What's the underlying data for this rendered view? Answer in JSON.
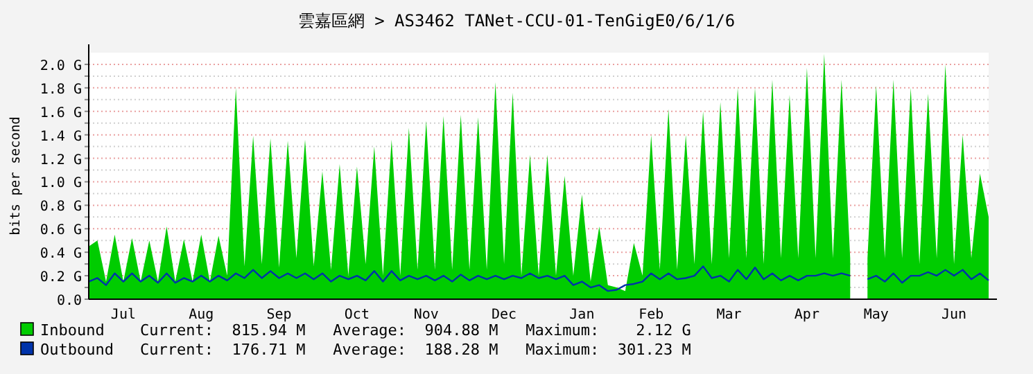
{
  "chart_data": {
    "type": "area",
    "title": "雲嘉區網 > AS3462 TANet-CCU-01-TenGigE0/6/1/6",
    "ylabel": "bits per second",
    "categories": [
      null,
      null,
      null,
      null,
      "Jul",
      null,
      null,
      null,
      null,
      null,
      null,
      null,
      null,
      "Aug",
      null,
      null,
      null,
      null,
      null,
      null,
      null,
      null,
      "Sep",
      null,
      null,
      null,
      null,
      null,
      null,
      null,
      null,
      "Oct",
      null,
      null,
      null,
      null,
      null,
      null,
      null,
      "Nov",
      null,
      null,
      null,
      null,
      null,
      null,
      null,
      null,
      "Dec",
      null,
      null,
      null,
      null,
      null,
      null,
      null,
      null,
      "Jan",
      null,
      null,
      null,
      null,
      null,
      null,
      null,
      "Feb",
      null,
      null,
      null,
      null,
      null,
      null,
      null,
      null,
      "Mar",
      null,
      null,
      null,
      null,
      null,
      null,
      null,
      null,
      "Apr",
      null,
      null,
      null,
      null,
      null,
      null,
      null,
      "May",
      null,
      null,
      null,
      null,
      null,
      null,
      null,
      null,
      "Jun",
      null,
      null,
      null,
      null
    ],
    "ylim": [
      0,
      2.1
    ],
    "yticks": [
      {
        "value": 0,
        "label": "0.0"
      },
      {
        "value": 0.1,
        "label": null
      },
      {
        "value": 0.2,
        "label": "0.2 G"
      },
      {
        "value": 0.3,
        "label": null
      },
      {
        "value": 0.4,
        "label": "0.4 G"
      },
      {
        "value": 0.5,
        "label": null
      },
      {
        "value": 0.6,
        "label": "0.6 G"
      },
      {
        "value": 0.7,
        "label": null
      },
      {
        "value": 0.8,
        "label": "0.8 G"
      },
      {
        "value": 0.9,
        "label": null
      },
      {
        "value": 1.0,
        "label": "1.0 G"
      },
      {
        "value": 1.1,
        "label": null
      },
      {
        "value": 1.2,
        "label": "1.2 G"
      },
      {
        "value": 1.3,
        "label": null
      },
      {
        "value": 1.4,
        "label": "1.4 G"
      },
      {
        "value": 1.5,
        "label": null
      },
      {
        "value": 1.6,
        "label": "1.6 G"
      },
      {
        "value": 1.7,
        "label": null
      },
      {
        "value": 1.8,
        "label": "1.8 G"
      },
      {
        "value": 1.9,
        "label": null
      },
      {
        "value": 2.0,
        "label": "2.0 G"
      }
    ],
    "series": [
      {
        "name": "Inbound",
        "color": "#00cc00",
        "values": [
          0.45,
          0.5,
          0.15,
          0.55,
          0.15,
          0.52,
          0.15,
          0.5,
          0.15,
          0.62,
          0.15,
          0.51,
          0.15,
          0.55,
          0.15,
          0.54,
          0.2,
          1.8,
          0.28,
          1.39,
          0.3,
          1.37,
          0.27,
          1.35,
          0.35,
          1.36,
          0.28,
          1.09,
          0.25,
          1.15,
          0.2,
          1.13,
          0.3,
          1.3,
          0.2,
          1.36,
          0.2,
          1.46,
          0.25,
          1.52,
          0.25,
          1.56,
          0.25,
          1.57,
          0.25,
          1.55,
          0.25,
          1.85,
          0.3,
          1.76,
          0.2,
          1.23,
          0.2,
          1.23,
          0.2,
          1.05,
          0.2,
          0.89,
          0.15,
          0.62,
          0.12,
          0.1,
          0.07,
          0.48,
          0.2,
          1.4,
          0.25,
          1.62,
          0.25,
          1.4,
          0.3,
          1.6,
          0.3,
          1.68,
          0.35,
          1.8,
          0.35,
          1.8,
          0.3,
          1.87,
          0.35,
          1.74,
          0.35,
          1.97,
          0.35,
          2.09,
          0.35,
          1.87,
          0.35,
          null,
          0.35,
          1.82,
          0.35,
          1.87,
          0.35,
          1.8,
          0.3,
          1.75,
          0.35,
          2.0,
          0.3,
          1.4,
          0.35,
          1.07,
          0.7
        ]
      },
      {
        "name": "Outbound",
        "type": "line",
        "color": "#0033aa",
        "values": [
          0.15,
          0.18,
          0.12,
          0.22,
          0.15,
          0.22,
          0.15,
          0.2,
          0.14,
          0.22,
          0.14,
          0.18,
          0.15,
          0.2,
          0.15,
          0.2,
          0.16,
          0.22,
          0.18,
          0.25,
          0.18,
          0.24,
          0.18,
          0.22,
          0.18,
          0.22,
          0.17,
          0.22,
          0.15,
          0.2,
          0.17,
          0.2,
          0.16,
          0.24,
          0.15,
          0.24,
          0.16,
          0.2,
          0.17,
          0.2,
          0.16,
          0.2,
          0.15,
          0.21,
          0.16,
          0.2,
          0.17,
          0.2,
          0.17,
          0.2,
          0.18,
          0.22,
          0.18,
          0.2,
          0.17,
          0.2,
          0.12,
          0.15,
          0.1,
          0.12,
          0.07,
          0.08,
          0.12,
          0.13,
          0.15,
          0.22,
          0.17,
          0.22,
          0.17,
          0.18,
          0.2,
          0.28,
          0.18,
          0.2,
          0.15,
          0.25,
          0.17,
          0.27,
          0.17,
          0.22,
          0.16,
          0.2,
          0.16,
          0.2,
          0.2,
          0.22,
          0.2,
          0.22,
          0.2,
          null,
          0.17,
          0.2,
          0.15,
          0.22,
          0.14,
          0.2,
          0.2,
          0.23,
          0.2,
          0.25,
          0.2,
          0.25,
          0.17,
          0.22,
          0.16
        ]
      }
    ],
    "annotations": [
      "Current:  815.94 M   Average:  904.88 M   Maximum:    2.12 G",
      "Current:  176.71 M   Average:  188.28 M   Maximum:  301.23 M"
    ],
    "grid": "y",
    "legend": "bottom"
  }
}
